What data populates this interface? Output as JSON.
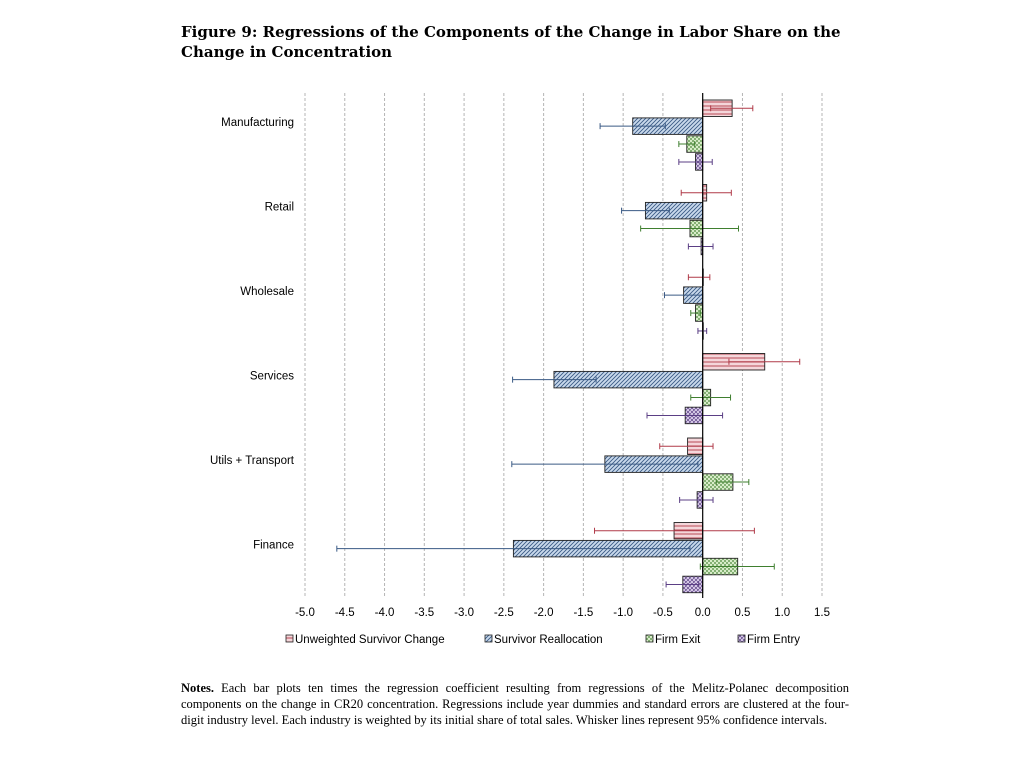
{
  "figure": {
    "title": "Figure 9:  Regressions of the Components of the Change in Labor Share on the Change in Concentration"
  },
  "notes": {
    "label": "Notes.",
    "text": "Each bar plots ten times the regression coefficient resulting from regressions of the Melitz-Polanec decomposition components on the change in CR20 concentration. Regressions include year dummies and standard errors are clustered at the four-digit industry level. Each industry is weighted by its initial share of total sales. Whisker lines represent 95% confidence intervals."
  },
  "chart_data": {
    "type": "bar",
    "orientation": "horizontal",
    "title": "",
    "xlabel": "",
    "ylabel": "",
    "xlim": [
      -5.0,
      1.5
    ],
    "xticks": [
      -5.0,
      -4.5,
      -4.0,
      -3.5,
      -3.0,
      -2.5,
      -2.0,
      -1.5,
      -1.0,
      -0.5,
      0.0,
      0.5,
      1.0,
      1.5
    ],
    "xtick_labels": [
      "-5.0",
      "-4.5",
      "-4.0",
      "-3.5",
      "-3.0",
      "-2.5",
      "-2.0",
      "-1.5",
      "-1.0",
      "-0.5",
      "0.0",
      "0.5",
      "1.0",
      "1.5"
    ],
    "grid": "vertical dashed",
    "legend_position": "bottom",
    "categories": [
      "Manufacturing",
      "Retail",
      "Wholesale",
      "Services",
      "Utils + Transport",
      "Finance"
    ],
    "series": [
      {
        "name": "Unweighted Survivor Change",
        "color": "#b03a48",
        "fill": "#f4d6da",
        "pattern": "horizontal",
        "values": [
          0.37,
          0.05,
          0.0,
          0.78,
          -0.19,
          -0.36
        ],
        "ci_low": [
          0.1,
          -0.27,
          -0.18,
          0.33,
          -0.54,
          -1.36
        ],
        "ci_high": [
          0.63,
          0.36,
          0.09,
          1.22,
          0.13,
          0.65
        ]
      },
      {
        "name": "Survivor Reallocation",
        "color": "#3a5a85",
        "fill": "#c9d9ec",
        "pattern": "diagonal",
        "values": [
          -0.88,
          -0.72,
          -0.24,
          -1.87,
          -1.23,
          -2.38
        ],
        "ci_low": [
          -1.29,
          -1.02,
          -0.48,
          -2.39,
          -2.4,
          -4.6
        ],
        "ci_high": [
          -0.47,
          -0.42,
          0.0,
          -1.34,
          -0.06,
          -0.16
        ]
      },
      {
        "name": "Firm Exit",
        "color": "#3f7f2f",
        "fill": "#d7ecc8",
        "pattern": "checker",
        "values": [
          -0.2,
          -0.16,
          -0.09,
          0.1,
          0.38,
          0.44
        ],
        "ci_low": [
          -0.3,
          -0.78,
          -0.15,
          -0.15,
          0.17,
          -0.03
        ],
        "ci_high": [
          -0.1,
          0.45,
          -0.03,
          0.35,
          0.58,
          0.9
        ]
      },
      {
        "name": "Firm Entry",
        "color": "#5b3f85",
        "fill": "#e2d8f0",
        "pattern": "crosshatch",
        "values": [
          -0.09,
          -0.02,
          0.0,
          -0.22,
          -0.07,
          -0.25
        ],
        "ci_low": [
          -0.3,
          -0.18,
          -0.06,
          -0.7,
          -0.29,
          -0.46
        ],
        "ci_high": [
          0.12,
          0.13,
          0.05,
          0.25,
          0.13,
          -0.05
        ]
      }
    ]
  }
}
